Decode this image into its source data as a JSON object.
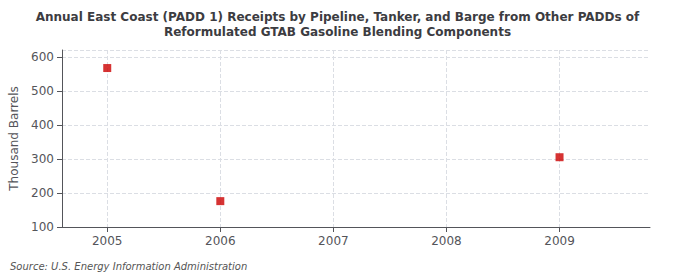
{
  "chart_data": {
    "type": "scatter",
    "title": "Annual East Coast (PADD 1) Receipts by Pipeline, Tanker, and Barge from Other PADDs of\nReformulated GTAB Gasoline Blending Components",
    "ylabel": "Thousand Barrels",
    "annotations": [
      "Source: U.S. Energy Information Administration"
    ],
    "x": [
      2005,
      2006,
      2009
    ],
    "values": [
      567,
      176,
      305
    ],
    "color": "#CC0000",
    "marker": "square",
    "xlim": [
      2004.6,
      2009.8
    ],
    "xticks": [
      2005,
      2006,
      2007,
      2008,
      2009
    ],
    "ylim": [
      100,
      620
    ],
    "yticks": [
      100,
      200,
      300,
      400,
      500,
      600
    ],
    "grid": true
  }
}
